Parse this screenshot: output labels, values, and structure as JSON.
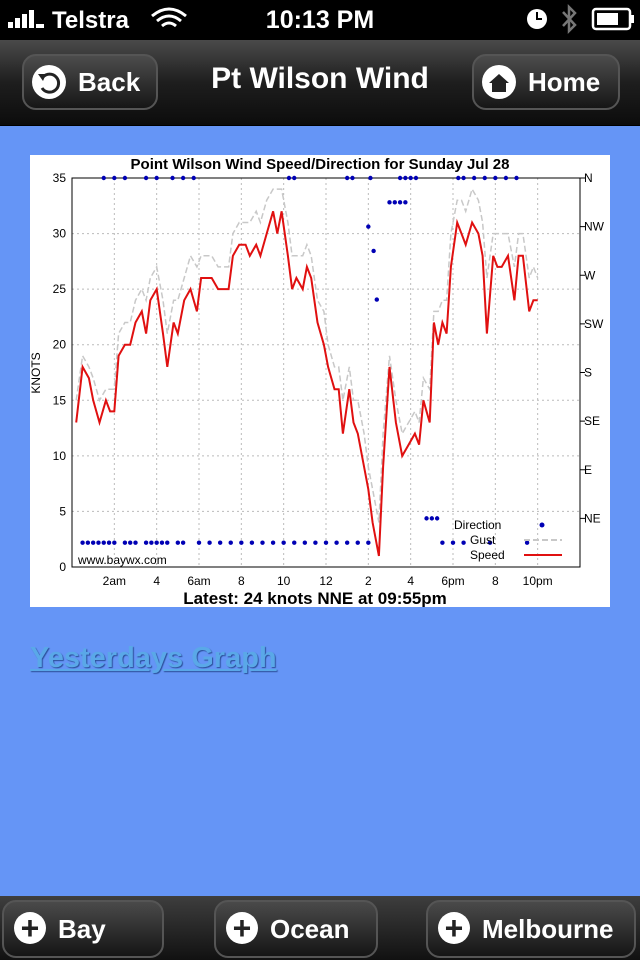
{
  "status_bar": {
    "carrier": "Telstra",
    "time": "10:13 PM"
  },
  "nav_bar": {
    "back": "Back",
    "title": "Pt Wilson Wind",
    "home": "Home"
  },
  "chart_data": {
    "type": "line",
    "title": "Point Wilson Wind Speed/Direction for Sunday Jul 28",
    "ylabel": "KNOTS",
    "watermark": "www.baywx.com",
    "footer": "Latest: 24 knots NNE at 09:55pm",
    "xlim": [
      0,
      24
    ],
    "xticks": [
      {
        "value": 2,
        "label": "2am"
      },
      4,
      {
        "value": 6,
        "label": "6am"
      },
      8,
      10,
      12,
      {
        "value": 14,
        "label": "2"
      },
      {
        "value": 16,
        "label": "4"
      },
      {
        "value": 18,
        "label": "6pm"
      },
      {
        "value": 20,
        "label": "8"
      },
      {
        "value": 22,
        "label": "10pm"
      }
    ],
    "ylim": [
      0,
      35
    ],
    "yticks": [
      0,
      5,
      10,
      15,
      20,
      25,
      30,
      35
    ],
    "y2lim": [
      0,
      360
    ],
    "y2ticks": [
      {
        "value": 360,
        "label": "N"
      },
      {
        "value": 315,
        "label": "NW"
      },
      {
        "value": 270,
        "label": "W"
      },
      {
        "value": 225,
        "label": "SW"
      },
      {
        "value": 180,
        "label": "S"
      },
      {
        "value": 135,
        "label": "SE"
      },
      {
        "value": 90,
        "label": "E"
      },
      {
        "value": 45,
        "label": "NE"
      }
    ],
    "grid": true,
    "legend": "lower right",
    "series": [
      {
        "name": "Direction",
        "type": "scatter",
        "axis": "y2",
        "color": "#0000b4",
        "x": [
          0.5,
          0.75,
          1.0,
          1.25,
          1.5,
          1.75,
          2.0,
          2.5,
          2.75,
          3.0,
          3.5,
          3.75,
          4.0,
          4.25,
          4.5,
          5.0,
          5.25,
          6.0,
          6.5,
          7.0,
          7.5,
          8.0,
          8.5,
          9.0,
          9.5,
          10.0,
          10.5,
          11.0,
          11.5,
          12.0,
          12.5,
          13.0,
          13.5,
          14.0,
          17.5,
          18.0,
          18.5,
          19.75,
          21.5,
          1.5,
          2.0,
          2.5,
          3.5,
          4.0,
          4.75,
          5.25,
          5.75,
          10.25,
          10.5,
          13.0,
          13.25,
          14.1,
          15.5,
          15.75,
          16.0,
          16.25,
          18.25,
          18.5,
          19.0,
          19.5,
          20.0,
          20.5,
          21.0,
          15.0,
          15.25,
          15.5,
          15.75,
          14.0,
          14.25,
          14.4,
          16.75,
          17.0,
          17.25
        ],
        "values": [
          22.5,
          22.5,
          22.5,
          22.5,
          22.5,
          22.5,
          22.5,
          22.5,
          22.5,
          22.5,
          22.5,
          22.5,
          22.5,
          22.5,
          22.5,
          22.5,
          22.5,
          22.5,
          22.5,
          22.5,
          22.5,
          22.5,
          22.5,
          22.5,
          22.5,
          22.5,
          22.5,
          22.5,
          22.5,
          22.5,
          22.5,
          22.5,
          22.5,
          22.5,
          22.5,
          22.5,
          22.5,
          22.5,
          22.5,
          360,
          360,
          360,
          360,
          360,
          360,
          360,
          360,
          360,
          360,
          360,
          360,
          360,
          360,
          360,
          360,
          360,
          360,
          360,
          360,
          360,
          360,
          360,
          360,
          337.5,
          337.5,
          337.5,
          337.5,
          315,
          292.5,
          247.5,
          45,
          45,
          45
        ]
      },
      {
        "name": "Gust",
        "type": "line",
        "color": "#c8c8c8",
        "x": [
          0.2,
          0.5,
          0.8,
          1.0,
          1.3,
          1.6,
          1.8,
          2.0,
          2.2,
          2.5,
          2.75,
          3.0,
          3.3,
          3.5,
          3.7,
          4.0,
          4.3,
          4.5,
          4.8,
          5.0,
          5.3,
          5.6,
          5.9,
          6.1,
          6.6,
          6.9,
          7.4,
          7.6,
          7.9,
          8.2,
          8.4,
          8.7,
          8.9,
          9.2,
          9.5,
          9.7,
          9.9,
          10.2,
          10.4,
          10.6,
          10.9,
          11.1,
          11.3,
          11.6,
          11.9,
          12.1,
          12.4,
          12.6,
          12.8,
          13.1,
          13.3,
          13.5,
          13.8,
          14.0,
          14.2,
          14.5,
          14.7,
          15.0,
          15.3,
          15.6,
          15.9,
          16.2,
          16.4,
          16.6,
          16.9,
          17.1,
          17.3,
          17.5,
          17.7,
          17.9,
          18.2,
          18.4,
          18.6,
          18.9,
          19.2,
          19.4,
          19.6,
          19.9,
          20.1,
          20.3,
          20.6,
          20.9,
          21.1,
          21.3,
          21.6,
          21.8,
          22.0
        ],
        "values": [
          15,
          19,
          18,
          17,
          15,
          16,
          16,
          16,
          21,
          22,
          22,
          24,
          25,
          24,
          26,
          27,
          24,
          21,
          24,
          24,
          26,
          28,
          27,
          28,
          28,
          27,
          27,
          30,
          31,
          31,
          31,
          32,
          31,
          33,
          34,
          34,
          34,
          31,
          28,
          28,
          28,
          29,
          28,
          24,
          23,
          20,
          18,
          18,
          15,
          18,
          15,
          15,
          12,
          9,
          7,
          4,
          12,
          19,
          15,
          12,
          13,
          14,
          13,
          17,
          16,
          23,
          23,
          24,
          24,
          30,
          33,
          33,
          32,
          34,
          33,
          31,
          26,
          30,
          30,
          30,
          30,
          27,
          30,
          30,
          26,
          27,
          26
        ]
      },
      {
        "name": "Speed",
        "type": "line",
        "color": "#e01010",
        "x": [
          0.2,
          0.5,
          0.8,
          1.0,
          1.3,
          1.6,
          1.8,
          2.0,
          2.2,
          2.5,
          2.75,
          3.0,
          3.3,
          3.5,
          3.7,
          4.0,
          4.3,
          4.5,
          4.8,
          5.0,
          5.3,
          5.6,
          5.9,
          6.1,
          6.6,
          6.9,
          7.4,
          7.6,
          7.9,
          8.2,
          8.4,
          8.7,
          8.9,
          9.2,
          9.5,
          9.7,
          9.9,
          10.2,
          10.4,
          10.6,
          10.9,
          11.1,
          11.3,
          11.6,
          11.9,
          12.1,
          12.4,
          12.6,
          12.8,
          13.1,
          13.3,
          13.5,
          13.8,
          14.0,
          14.2,
          14.5,
          14.7,
          15.0,
          15.3,
          15.6,
          15.9,
          16.2,
          16.4,
          16.6,
          16.9,
          17.1,
          17.3,
          17.5,
          17.7,
          17.9,
          18.2,
          18.4,
          18.6,
          18.9,
          19.2,
          19.4,
          19.6,
          19.9,
          20.1,
          20.3,
          20.6,
          20.9,
          21.1,
          21.3,
          21.6,
          21.8,
          22.0
        ],
        "values": [
          13,
          18,
          17,
          15,
          13,
          15,
          14,
          14,
          19,
          20,
          20,
          22,
          23,
          21,
          24,
          25,
          21,
          18,
          22,
          21,
          24,
          25,
          23,
          26,
          26,
          25,
          25,
          28,
          29,
          29,
          28,
          29,
          28,
          30,
          32,
          30,
          32,
          28,
          25,
          26,
          25,
          27,
          26,
          22,
          20,
          18,
          16,
          16,
          12,
          16,
          13,
          12,
          9,
          7,
          4,
          1,
          9,
          18,
          13,
          10,
          11,
          12,
          11,
          15,
          13,
          22,
          20,
          22,
          21,
          27,
          31,
          30,
          29,
          31,
          30,
          28,
          21,
          28,
          27,
          27,
          28,
          24,
          28,
          28,
          23,
          24,
          24
        ]
      }
    ]
  },
  "link": "Yesterdays Graph",
  "tab_bar": {
    "tabs": [
      "Bay",
      "Ocean",
      "Melbourne"
    ]
  }
}
